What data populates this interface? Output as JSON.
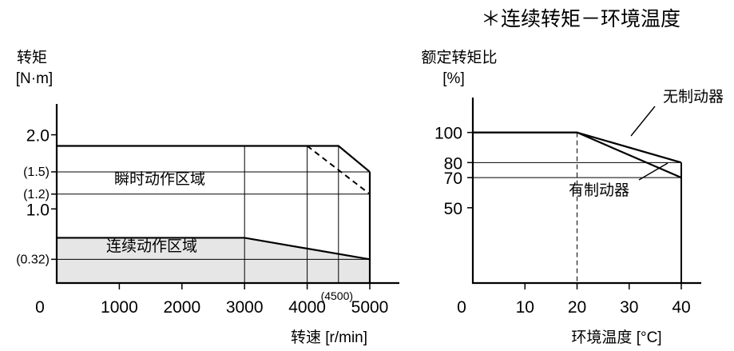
{
  "header_note": "＊连续转矩－环境温度",
  "chart_data": [
    {
      "type": "area",
      "ylabel_line1": "转矩",
      "ylabel_line2": "[N·m]",
      "xlabel": "转速 [r/min]",
      "xlim": [
        0,
        5000
      ],
      "ylim": [
        0,
        2.33
      ],
      "x_origin_label": "0",
      "x_ticks": [
        {
          "value": 1000,
          "label": "1000"
        },
        {
          "value": 2000,
          "label": "2000"
        },
        {
          "value": 3000,
          "label": "3000"
        },
        {
          "value": 4000,
          "label": "4000"
        },
        {
          "value": 5000,
          "label": "5000"
        }
      ],
      "x_extra_tick": {
        "value": 4500,
        "label": "(4500)"
      },
      "y_ticks": [
        {
          "value": 2.0,
          "label": "2.0"
        },
        {
          "value": 1.5,
          "label": "(1.5)"
        },
        {
          "value": 1.2,
          "label": "(1.2)"
        },
        {
          "value": 1.0,
          "label": "1.0"
        },
        {
          "value": 0.32,
          "label": "(0.32)"
        }
      ],
      "regions": [
        {
          "name": "瞬时动作区域",
          "points": [
            [
              0,
              0
            ],
            [
              0,
              1.85
            ],
            [
              4500,
              1.85
            ],
            [
              5000,
              1.5
            ],
            [
              5000,
              0
            ]
          ],
          "fill": "#ffffff"
        },
        {
          "name": "连续动作区域",
          "points": [
            [
              0,
              0
            ],
            [
              0,
              0.61
            ],
            [
              3000,
              0.61
            ],
            [
              5000,
              0.32
            ],
            [
              5000,
              0
            ]
          ],
          "fill": "#e6e6e6"
        }
      ],
      "dashed_line": [
        [
          4000,
          1.85
        ],
        [
          5000,
          1.2
        ]
      ],
      "guide_lines_h": [
        1.5,
        1.2,
        0.32
      ],
      "guide_lines_v": [
        3000,
        4000,
        4500
      ]
    },
    {
      "type": "line",
      "ylabel_line1": "额定转矩比",
      "ylabel_line2": "[%]",
      "xlabel": "环境温度 [°C]",
      "xlim": [
        0,
        40
      ],
      "ylim": [
        0,
        120
      ],
      "x_origin_label": "0",
      "x_ticks": [
        {
          "value": 10,
          "label": "10"
        },
        {
          "value": 20,
          "label": "20"
        },
        {
          "value": 30,
          "label": "30"
        },
        {
          "value": 40,
          "label": "40"
        }
      ],
      "y_ticks": [
        {
          "value": 100,
          "label": "100"
        },
        {
          "value": 80,
          "label": "80"
        },
        {
          "value": 70,
          "label": "70"
        },
        {
          "value": 50,
          "label": "50"
        }
      ],
      "series": [
        {
          "name": "无制动器",
          "x": [
            0,
            20,
            40
          ],
          "y": [
            100,
            100,
            80
          ]
        },
        {
          "name": "有制动器",
          "x": [
            0,
            20,
            40
          ],
          "y": [
            100,
            100,
            70
          ]
        }
      ],
      "guide_lines_h": [
        80,
        70
      ],
      "guide_lines_v": [
        20,
        40
      ]
    }
  ]
}
